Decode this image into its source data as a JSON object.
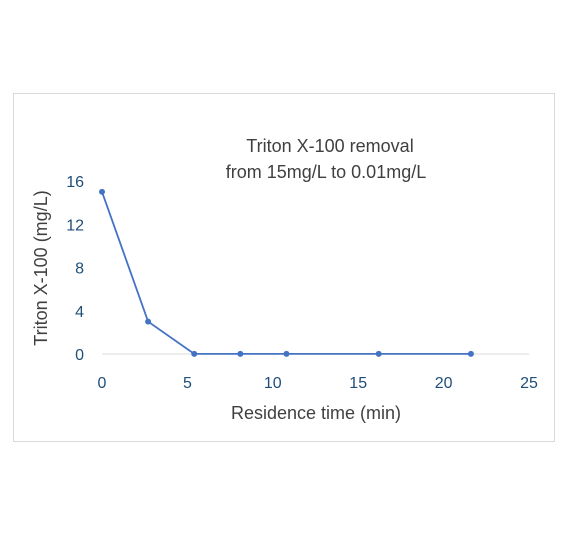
{
  "chart_data": {
    "type": "scatter",
    "title_lines": [
      "Triton X-100 removal",
      "from 15mg/L to 0.01mg/L"
    ],
    "xlabel": "Residence time (min)",
    "ylabel": "Triton X-100 (mg/L)",
    "xlim": [
      0,
      25
    ],
    "ylim": [
      0,
      16
    ],
    "xticks": [
      "0",
      "5",
      "10",
      "15",
      "20",
      "25"
    ],
    "yticks": [
      "0",
      "4",
      "8",
      "12",
      "16"
    ],
    "grid": false,
    "legend": "none",
    "series": [
      {
        "color": "#4472c4",
        "x": [
          0,
          2.7,
          5.4,
          8.1,
          10.8,
          16.2,
          21.6
        ],
        "y": [
          15,
          3,
          0.01,
          0.01,
          0.01,
          0.01,
          0.01
        ]
      }
    ]
  },
  "colors": {
    "series": "#4472c4",
    "tick_text": "#1f4e79",
    "axis_line": "#d9d9d9",
    "title_text": "#404040"
  }
}
